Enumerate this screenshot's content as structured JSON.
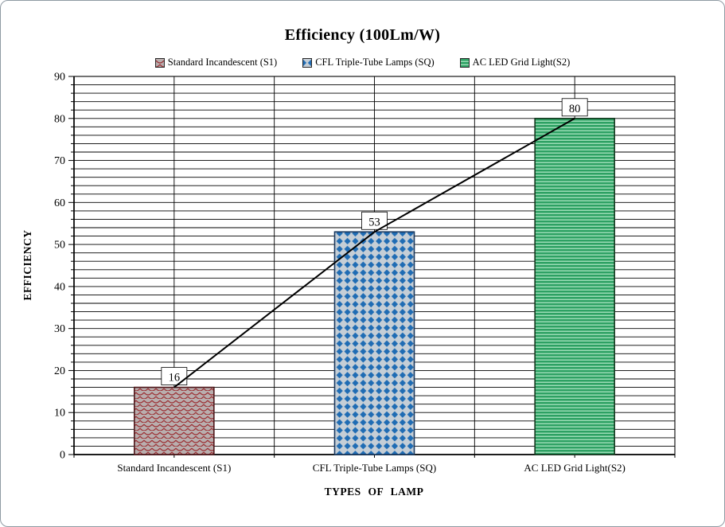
{
  "chart_data": {
    "type": "bar",
    "title": "Efficiency (100Lm/W)",
    "xlabel": "TYPES  OF  LAMP",
    "ylabel": "EFFICIENCY",
    "ylim": [
      0,
      90
    ],
    "y_major_unit": 10,
    "y_minor_unit": 2,
    "grid": "horizontal minor gridlines every 2 units; vertical gridlines at category centers and boundaries",
    "legend_position": "top",
    "categories": [
      "Standard Incandescent (S1)",
      "CFL Triple-Tube Lamps (SQ)",
      "AC LED Grid Light(S2)"
    ],
    "series": [
      {
        "name": "Standard Incandescent (S1)",
        "value": 16,
        "pattern": "shingle",
        "fill_bg": "#b9aeae",
        "fill_fg": "#9c2f33",
        "border": "#4f181b"
      },
      {
        "name": "CFL Triple-Tube Lamps (SQ)",
        "value": 53,
        "pattern": "solid-diamond",
        "fill_bg": "#c5ced6",
        "fill_fg": "#1f6cb4",
        "border": "#17375e"
      },
      {
        "name": "AC LED Grid Light(S2)",
        "value": 80,
        "pattern": "horizontal-stripes",
        "fill_bg": "#2da163",
        "fill_fg": "#9adcb6",
        "border": "#14381f"
      }
    ],
    "data_labels": [
      16,
      53,
      80
    ],
    "trend_line": {
      "color": "#000000",
      "values": [
        16,
        53,
        80
      ]
    }
  }
}
